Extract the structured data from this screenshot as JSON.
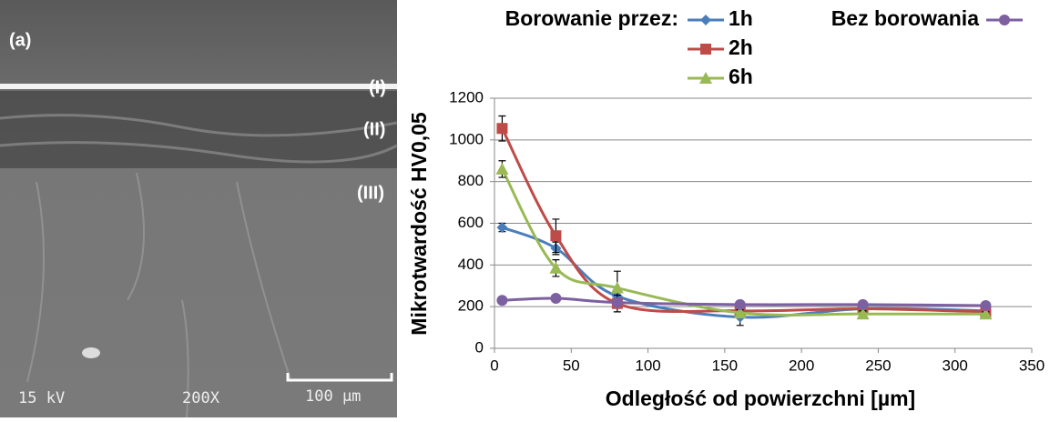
{
  "image": {
    "panel_label": "(a)",
    "layers": [
      "(I)",
      "(II)",
      "(III)"
    ],
    "voltage": "15 kV",
    "magnification": "200X",
    "scale_bar": "100 µm"
  },
  "chart_data": {
    "type": "line",
    "legend_title": "Borowanie przez:",
    "x_label": "Odległość od powierzchni [µm]",
    "y_label": "Mikrotwardość HV0,05",
    "x": [
      5,
      40,
      80,
      160,
      240,
      320
    ],
    "series": [
      {
        "name": "1h",
        "color": "#4a7ebb",
        "marker": "diamond",
        "values": [
          580,
          480,
          250,
          150,
          190,
          180
        ],
        "errors": [
          20,
          30,
          40,
          40,
          15,
          15
        ]
      },
      {
        "name": "2h",
        "color": "#be4b48",
        "marker": "square",
        "values": [
          1055,
          540,
          215,
          180,
          190,
          175
        ],
        "errors": [
          60,
          80,
          40,
          15,
          15,
          15
        ]
      },
      {
        "name": "6h",
        "color": "#98b954",
        "marker": "triangle",
        "values": [
          860,
          385,
          290,
          170,
          165,
          165
        ],
        "errors": [
          40,
          40,
          80,
          15,
          15,
          10
        ]
      },
      {
        "name": "Bez borowania",
        "color": "#7d60a0",
        "marker": "circle",
        "values": [
          230,
          240,
          220,
          210,
          210,
          205
        ],
        "errors": [
          0,
          0,
          0,
          0,
          0,
          0
        ]
      }
    ],
    "xlim": [
      0,
      350
    ],
    "xticks": [
      0,
      50,
      100,
      150,
      200,
      250,
      300,
      350
    ],
    "ylim": [
      0,
      1200
    ],
    "yticks": [
      0,
      200,
      400,
      600,
      800,
      1000,
      1200
    ],
    "grid": true,
    "smooth": true
  }
}
